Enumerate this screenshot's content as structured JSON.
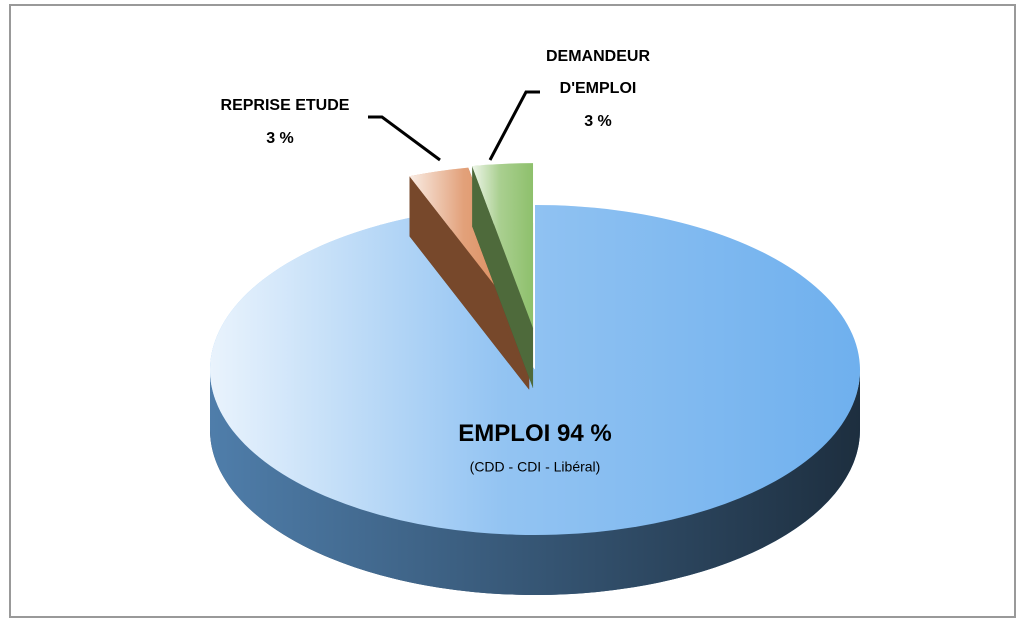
{
  "chart_data": {
    "type": "pie",
    "categories": [
      "EMPLOI",
      "REPRISE ETUDE",
      "DEMANDEUR D'EMPLOI"
    ],
    "values": [
      94,
      3,
      3
    ],
    "value_labels": [
      "94 %",
      "3 %",
      "3 %"
    ],
    "colors": [
      "#6fb0ee",
      "#d9824e",
      "#8ec06c"
    ],
    "annotation": "(CDD - CDI - Libéral)"
  }
}
